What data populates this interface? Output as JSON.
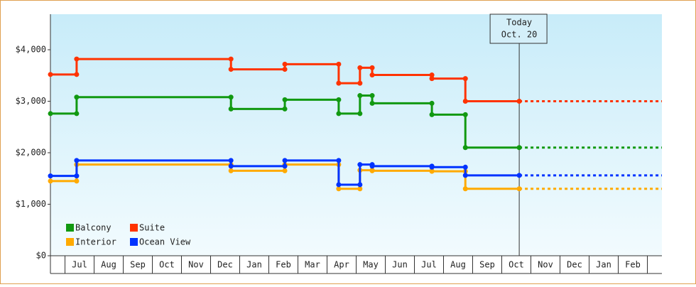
{
  "chart_data": {
    "type": "line",
    "x": [
      0.5,
      1.4,
      1.4,
      6.7,
      6.7,
      8.55,
      8.55,
      10.4,
      10.4,
      11.13,
      11.13,
      11.55,
      11.55,
      13.6,
      13.6,
      14.75,
      14.75,
      16.6
    ],
    "series": [
      {
        "name": "Balcony",
        "color": "#119911",
        "values": [
          2760,
          2760,
          3080,
          3080,
          2850,
          2850,
          3030,
          3030,
          2760,
          2760,
          3110,
          3110,
          2960,
          2960,
          2740,
          2740,
          2100,
          2100
        ]
      },
      {
        "name": "Suite",
        "color": "#ff3300",
        "values": [
          3520,
          3520,
          3820,
          3820,
          3620,
          3620,
          3720,
          3720,
          3350,
          3350,
          3650,
          3650,
          3510,
          3510,
          3440,
          3440,
          3000,
          3000
        ]
      },
      {
        "name": "Interior",
        "color": "#ffaa00",
        "values": [
          1450,
          1450,
          1770,
          1770,
          1650,
          1650,
          1770,
          1770,
          1300,
          1300,
          1660,
          1660,
          1650,
          1650,
          1640,
          1640,
          1300,
          1300
        ]
      },
      {
        "name": "Ocean View",
        "color": "#0033ff",
        "values": [
          1550,
          1550,
          1850,
          1850,
          1740,
          1740,
          1850,
          1850,
          1380,
          1380,
          1770,
          1770,
          1740,
          1740,
          1720,
          1720,
          1560,
          1560
        ]
      }
    ],
    "xlim": [
      0.5,
      21.5
    ],
    "xticks": [
      {
        "value": 1.5,
        "label": "Jul"
      },
      {
        "value": 2.5,
        "label": "Aug"
      },
      {
        "value": 3.5,
        "label": "Sep"
      },
      {
        "value": 4.5,
        "label": "Oct"
      },
      {
        "value": 5.5,
        "label": "Nov"
      },
      {
        "value": 6.5,
        "label": "Dec"
      },
      {
        "value": 7.5,
        "label": "Jan"
      },
      {
        "value": 8.5,
        "label": "Feb"
      },
      {
        "value": 9.5,
        "label": "Mar"
      },
      {
        "value": 10.5,
        "label": "Apr"
      },
      {
        "value": 11.5,
        "label": "May"
      },
      {
        "value": 12.5,
        "label": "Jun"
      },
      {
        "value": 13.5,
        "label": "Jul"
      },
      {
        "value": 14.5,
        "label": "Aug"
      },
      {
        "value": 15.5,
        "label": "Sep"
      },
      {
        "value": 16.5,
        "label": "Oct"
      },
      {
        "value": 17.5,
        "label": "Nov"
      },
      {
        "value": 18.5,
        "label": "Dec"
      },
      {
        "value": 19.5,
        "label": "Jan"
      },
      {
        "value": 20.5,
        "label": "Feb"
      }
    ],
    "ylim": [
      0,
      4690
    ],
    "yticks": [
      {
        "value": 0,
        "label": "$0"
      },
      {
        "value": 1000,
        "label": "$1,000"
      },
      {
        "value": 2000,
        "label": "$2,000"
      },
      {
        "value": 3000,
        "label": "$3,000"
      },
      {
        "value": 4000,
        "label": "$4,000"
      }
    ],
    "annotation": {
      "lines": [
        "Today",
        "Oct. 20"
      ],
      "x": 16.6
    },
    "legend": "lower left"
  }
}
